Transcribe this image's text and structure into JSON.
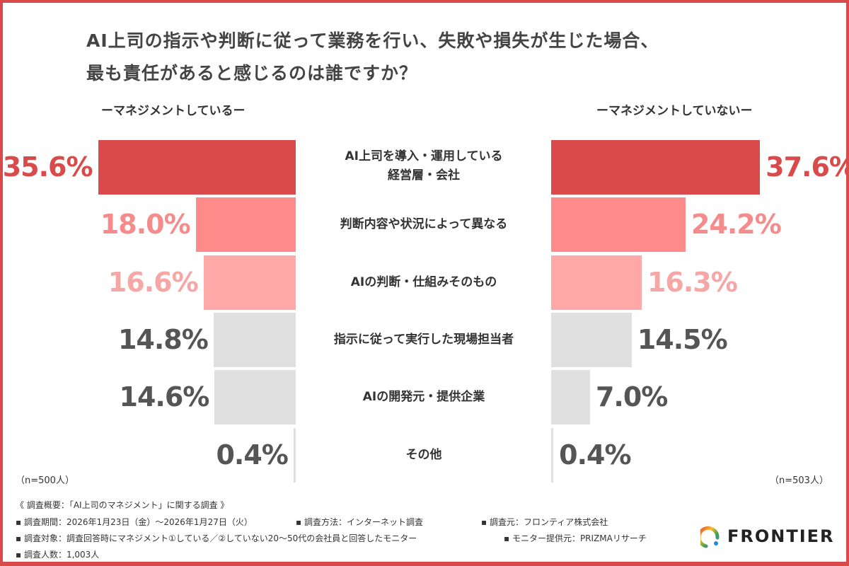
{
  "title_lines": [
    "AI上司の指示や判断に従って業務を行い、失敗や損失が生じた場合、",
    "最も責任があると感じるのは誰ですか？"
  ],
  "chart_data": {
    "type": "bar",
    "orientation": "horizontal-butterfly",
    "title": "AI上司の指示や判断に従って業務を行い、失敗や損失が生じた場合、最も責任があると感じるのは誰ですか？",
    "categories": [
      "AI上司を導入・運用している\n経営層・会社",
      "判断内容や状況によって異なる",
      "AIの判断・仕組みそのもの",
      "指示に従って実行した現場担当者",
      "AIの開発元・提供企業",
      "その他"
    ],
    "series": [
      {
        "name": "ーマネジメントしているー",
        "values": [
          35.6,
          18.0,
          16.6,
          14.8,
          14.6,
          0.4
        ],
        "labels": [
          "35.6%",
          "18.0%",
          "16.6%",
          "14.8%",
          "14.6%",
          "0.4%"
        ],
        "n": "（n=500人）"
      },
      {
        "name": "ーマネジメントしていないー",
        "values": [
          37.6,
          24.2,
          16.3,
          14.5,
          7.0,
          0.4
        ],
        "labels": [
          "37.6%",
          "24.2%",
          "16.3%",
          "14.5%",
          "7.0%",
          "0.4%"
        ],
        "n": "（n=503人）"
      }
    ],
    "bar_colors": [
      "#d94a4a",
      "#ff8a8a",
      "#ffa8a8",
      "#e0e0e0",
      "#e0e0e0",
      "#e0e0e0"
    ],
    "label_colors": [
      "#d94a4a",
      "#f58b8b",
      "#f7a6a6",
      "#555555",
      "#555555",
      "#555555"
    ]
  },
  "footer": {
    "overview": "《 調査概要：「AI上司のマネジメント」に関する調査 》",
    "period": "▪ 調査期間：2026年1月23日（金）～2026年1月27日（火）",
    "method": "▪ 調査方法：インターネット調査",
    "source": "▪ 調査元：フロンティア株式会社",
    "target": "▪ 調査対象：調査回答時にマネジメント①している／②していない20～50代の会社員と回答したモニター",
    "provider": "▪ モニター提供元：PRIZMAリサーチ",
    "count": "▪ 調査人数：1,003人"
  },
  "logo": {
    "text": "FRONTIER"
  }
}
